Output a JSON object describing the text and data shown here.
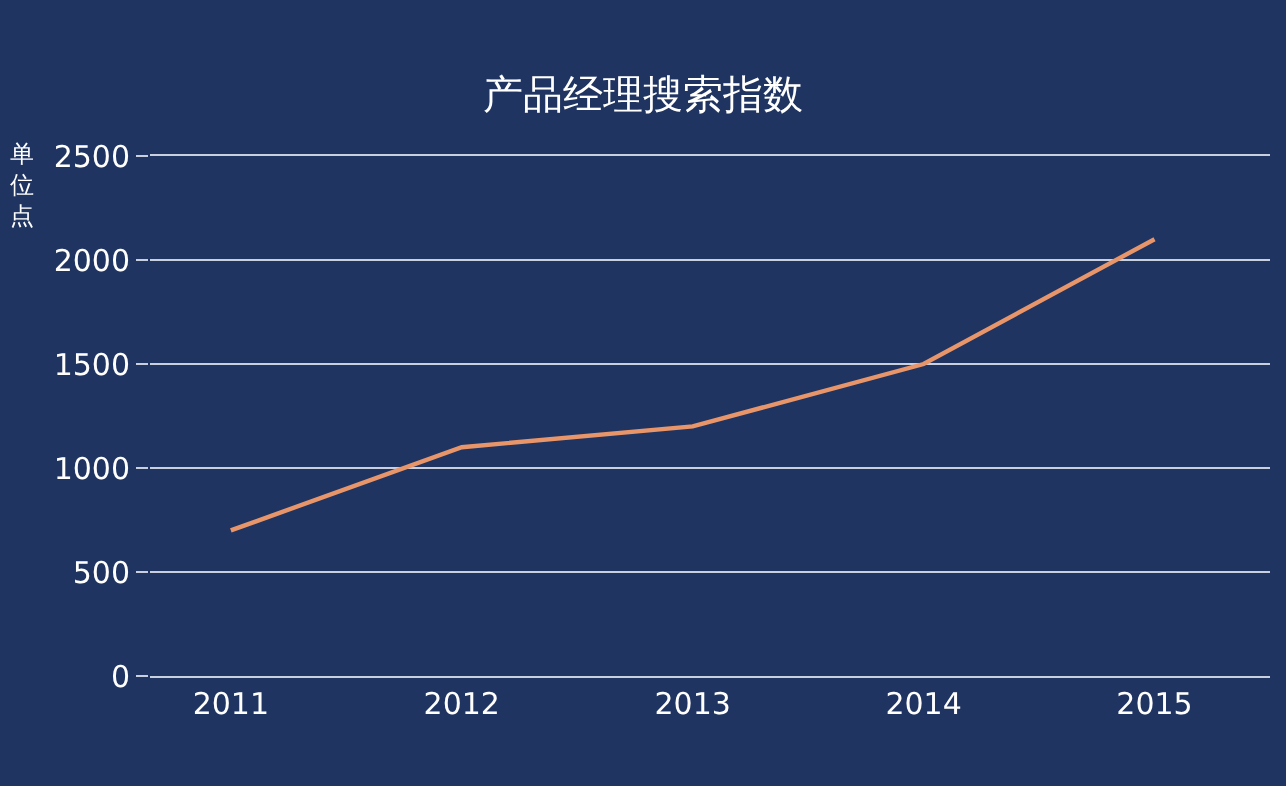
{
  "chart_data": {
    "type": "line",
    "title": "产品经理搜索指数",
    "ylabel": "单位点",
    "categories": [
      "2011",
      "2012",
      "2013",
      "2014",
      "2015"
    ],
    "series": [
      {
        "color": "#e8956a",
        "values": [
          700,
          1100,
          1200,
          1500,
          2100
        ]
      }
    ],
    "ylim": [
      0,
      2500
    ],
    "yticks": [
      0,
      500,
      1000,
      1500,
      2000,
      2500
    ],
    "grid": "y",
    "marker": "none",
    "line_style": "solid"
  }
}
